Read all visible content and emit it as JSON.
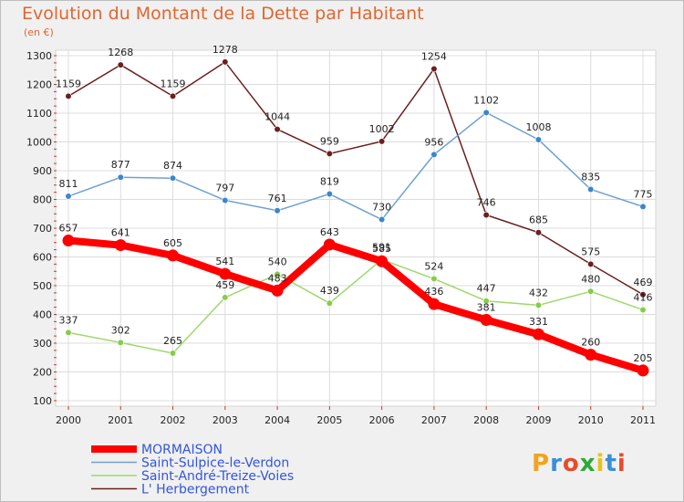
{
  "chart_data": {
    "type": "line",
    "title": "Evolution du Montant de la Dette par Habitant",
    "subtitle": "(en €)",
    "x": [
      "2000",
      "2001",
      "2002",
      "2003",
      "2004",
      "2005",
      "2006",
      "2007",
      "2008",
      "2009",
      "2010",
      "2011"
    ],
    "y_ticks": [
      100,
      200,
      300,
      400,
      500,
      600,
      700,
      800,
      900,
      1000,
      1100,
      1200,
      1300
    ],
    "ylim": [
      100,
      1300
    ],
    "grid": true,
    "legend_position": "bottom-left",
    "series": [
      {
        "name": "L' Herbergement",
        "color": "#6b1f1f",
        "point_color": "#6b1f1f",
        "values": [
          1159,
          1268,
          1159,
          1278,
          1044,
          959,
          1002,
          1254,
          746,
          685,
          575,
          469
        ]
      },
      {
        "name": "Saint-Sulpice-le-Verdon",
        "color": "#6fa1cf",
        "point_color": "#3a87cc",
        "values": [
          811,
          877,
          874,
          797,
          761,
          819,
          730,
          956,
          1102,
          1008,
          835,
          775
        ]
      },
      {
        "name": "Saint-André-Treize-Voies",
        "color": "#9ed86a",
        "point_color": "#86cc4a",
        "values": [
          337,
          302,
          265,
          459,
          540,
          439,
          591,
          524,
          447,
          432,
          480,
          416
        ]
      },
      {
        "name": "MORMAISON",
        "color": "#ff0000",
        "point_color": "#ff0000",
        "values": [
          657,
          641,
          605,
          541,
          483,
          643,
          585,
          436,
          381,
          331,
          260,
          205
        ]
      }
    ],
    "legend_order": [
      "MORMAISON",
      "Saint-Sulpice-le-Verdon",
      "Saint-André-Treize-Voies",
      "L' Herbergement"
    ]
  },
  "logo": {
    "text": "Proxiti"
  }
}
